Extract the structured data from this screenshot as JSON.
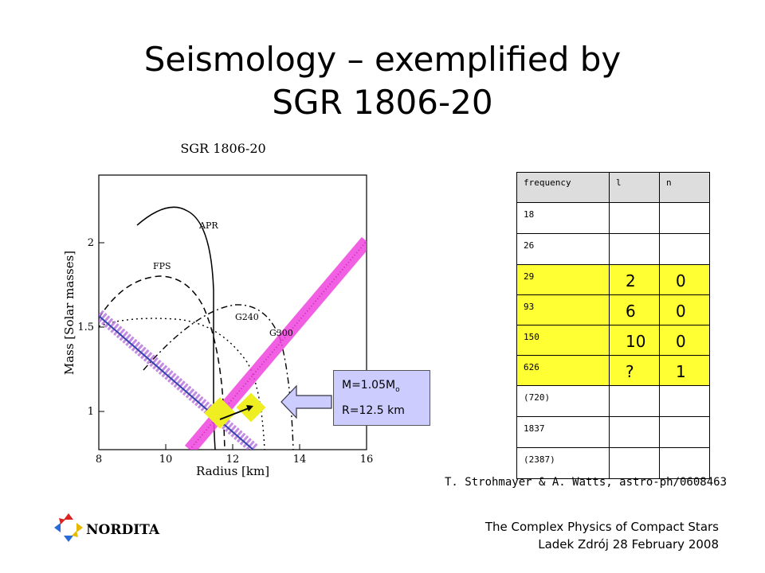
{
  "slide": {
    "title_line1": "Seismology – exemplified by",
    "title_line2": "SGR 1806-20"
  },
  "figure": {
    "title": "SGR 1806-20",
    "xlabel": "Radius [km]",
    "ylabel": "Mass [Solar masses]",
    "xticks": [
      "8",
      "10",
      "12",
      "14",
      "16"
    ],
    "yticks": [
      "1",
      "1.5",
      "2"
    ],
    "curve_labels": [
      "APR",
      "FPS",
      "G300",
      "G240"
    ]
  },
  "callout": {
    "mass_text": "M=1.05M",
    "mass_sub": "o",
    "radius_text": "R=12.5 km"
  },
  "table": {
    "headers": [
      "frequency",
      "l",
      "n"
    ],
    "rows": [
      {
        "f": "18",
        "l": "",
        "n": ""
      },
      {
        "f": "26",
        "l": "",
        "n": ""
      },
      {
        "f": "29",
        "l": "2",
        "n": "0"
      },
      {
        "f": "93",
        "l": "6",
        "n": "0"
      },
      {
        "f": "150",
        "l": "10",
        "n": "0"
      },
      {
        "f": "626",
        "l": "?",
        "n": "1"
      },
      {
        "f": "(720)",
        "l": "",
        "n": ""
      },
      {
        "f": "1837",
        "l": "",
        "n": ""
      },
      {
        "f": "(2387)",
        "l": "",
        "n": ""
      }
    ],
    "highlight_color": "#ffff33"
  },
  "citation": "T. Strohmayer & A. Watts, astro-ph/0608463",
  "footer": {
    "line1": "The Complex Physics of Compact Stars",
    "line2": "Ladek Zdrój 28 February 2008"
  },
  "logo": {
    "text": "NORDITA",
    "icon": "nordita-logo-icon"
  }
}
